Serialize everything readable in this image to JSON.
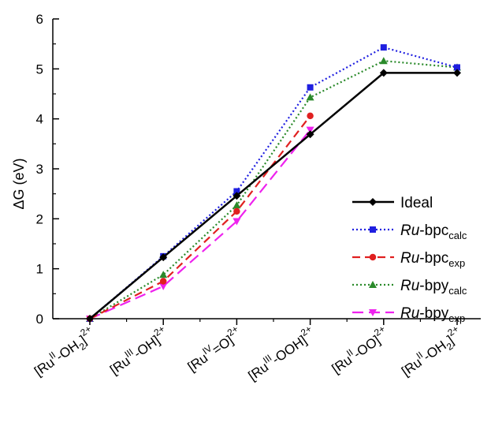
{
  "chart_data": {
    "type": "line",
    "xlabel": "",
    "ylabel": "ΔG (eV)",
    "ylim": [
      0,
      6
    ],
    "yticks": [
      "0",
      "1",
      "2",
      "3",
      "4",
      "5",
      "6"
    ],
    "grid": false,
    "legend_position": "right",
    "categories": [
      {
        "pre": "[Ru",
        "ox": "II",
        "mid": "-OH",
        "sub": "2",
        "post": "]",
        "charge": "2+"
      },
      {
        "pre": "[Ru",
        "ox": "III",
        "mid": "-OH",
        "sub": "",
        "post": "]",
        "charge": "2+"
      },
      {
        "pre": "[Ru",
        "ox": "IV",
        "mid": "=O",
        "sub": "",
        "post": "]",
        "charge": "2+"
      },
      {
        "pre": "[Ru",
        "ox": "III",
        "mid": "-OOH",
        "sub": "",
        "post": "]",
        "charge": "2+"
      },
      {
        "pre": "[Ru",
        "ox": "II",
        "mid": "-OO",
        "sub": "",
        "post": "]",
        "charge": "2+"
      },
      {
        "pre": "[Ru",
        "ox": "II",
        "mid": "-OH",
        "sub": "2",
        "post": "]",
        "charge": "2+"
      }
    ],
    "series": [
      {
        "name": "Ideal",
        "name_italic": "",
        "name_rest": "Ideal",
        "name_sub": "",
        "color": "#000000",
        "dash": "solid",
        "marker": "diamond",
        "values": [
          0,
          1.23,
          2.46,
          3.69,
          4.92,
          4.92
        ]
      },
      {
        "name": "Ru-bpc calc",
        "name_italic": "Ru",
        "name_rest": "-bpc",
        "name_sub": "calc",
        "color": "#1f1fe0",
        "dash": "dot",
        "marker": "square",
        "values": [
          0,
          1.25,
          2.55,
          4.63,
          5.43,
          5.03
        ]
      },
      {
        "name": "Ru-bpc exp",
        "name_italic": "Ru",
        "name_rest": "-bpc",
        "name_sub": "exp",
        "color": "#e02020",
        "dash": "dash",
        "marker": "circle",
        "values": [
          0,
          0.75,
          2.15,
          4.06,
          null,
          null
        ]
      },
      {
        "name": "Ru-bpy calc",
        "name_italic": "Ru",
        "name_rest": "-bpy",
        "name_sub": "calc",
        "color": "#2a8a2a",
        "dash": "dot",
        "marker": "triangle-up",
        "values": [
          0,
          0.88,
          2.27,
          4.43,
          5.16,
          5.03
        ]
      },
      {
        "name": "Ru-bpy exp",
        "name_italic": "Ru",
        "name_rest": "-bpy",
        "name_sub": "exp",
        "color": "#ee22ee",
        "dash": "longdash",
        "marker": "triangle-down",
        "values": [
          0,
          0.65,
          1.95,
          3.78,
          null,
          null
        ]
      }
    ]
  }
}
